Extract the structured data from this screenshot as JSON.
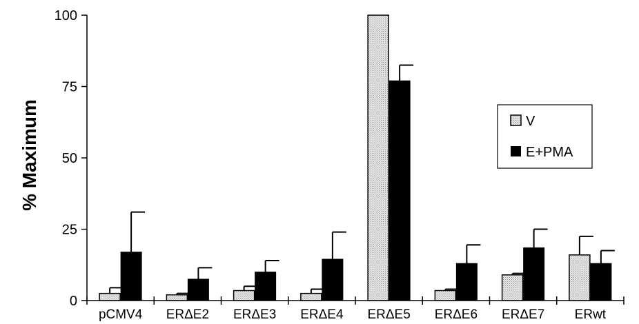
{
  "chart_data": {
    "type": "bar",
    "title": "",
    "xlabel": "",
    "ylabel": "% Maximum",
    "ylim": [
      0,
      100
    ],
    "yticks": [
      0,
      25,
      50,
      75,
      100
    ],
    "grid": false,
    "legend_position": "right",
    "categories": [
      "pCMV4",
      "ERΔE2",
      "ERΔE3",
      "ERΔE4",
      "ERΔE5",
      "ERΔE6",
      "ERΔE7",
      "ERwt"
    ],
    "series": [
      {
        "name": "V",
        "color": "#d4d4d4",
        "values": [
          2.5,
          2,
          3.5,
          2.5,
          100,
          3.5,
          9,
          16
        ],
        "errors": [
          2,
          0.5,
          1.5,
          1.5,
          0,
          0.5,
          0.5,
          6.5
        ]
      },
      {
        "name": "E+PMA",
        "color": "#000000",
        "values": [
          17,
          7.5,
          10,
          14.5,
          77,
          13,
          18.5,
          13
        ],
        "errors": [
          14,
          4,
          4,
          9.5,
          5.5,
          6.5,
          6.5,
          4.5
        ]
      }
    ]
  }
}
